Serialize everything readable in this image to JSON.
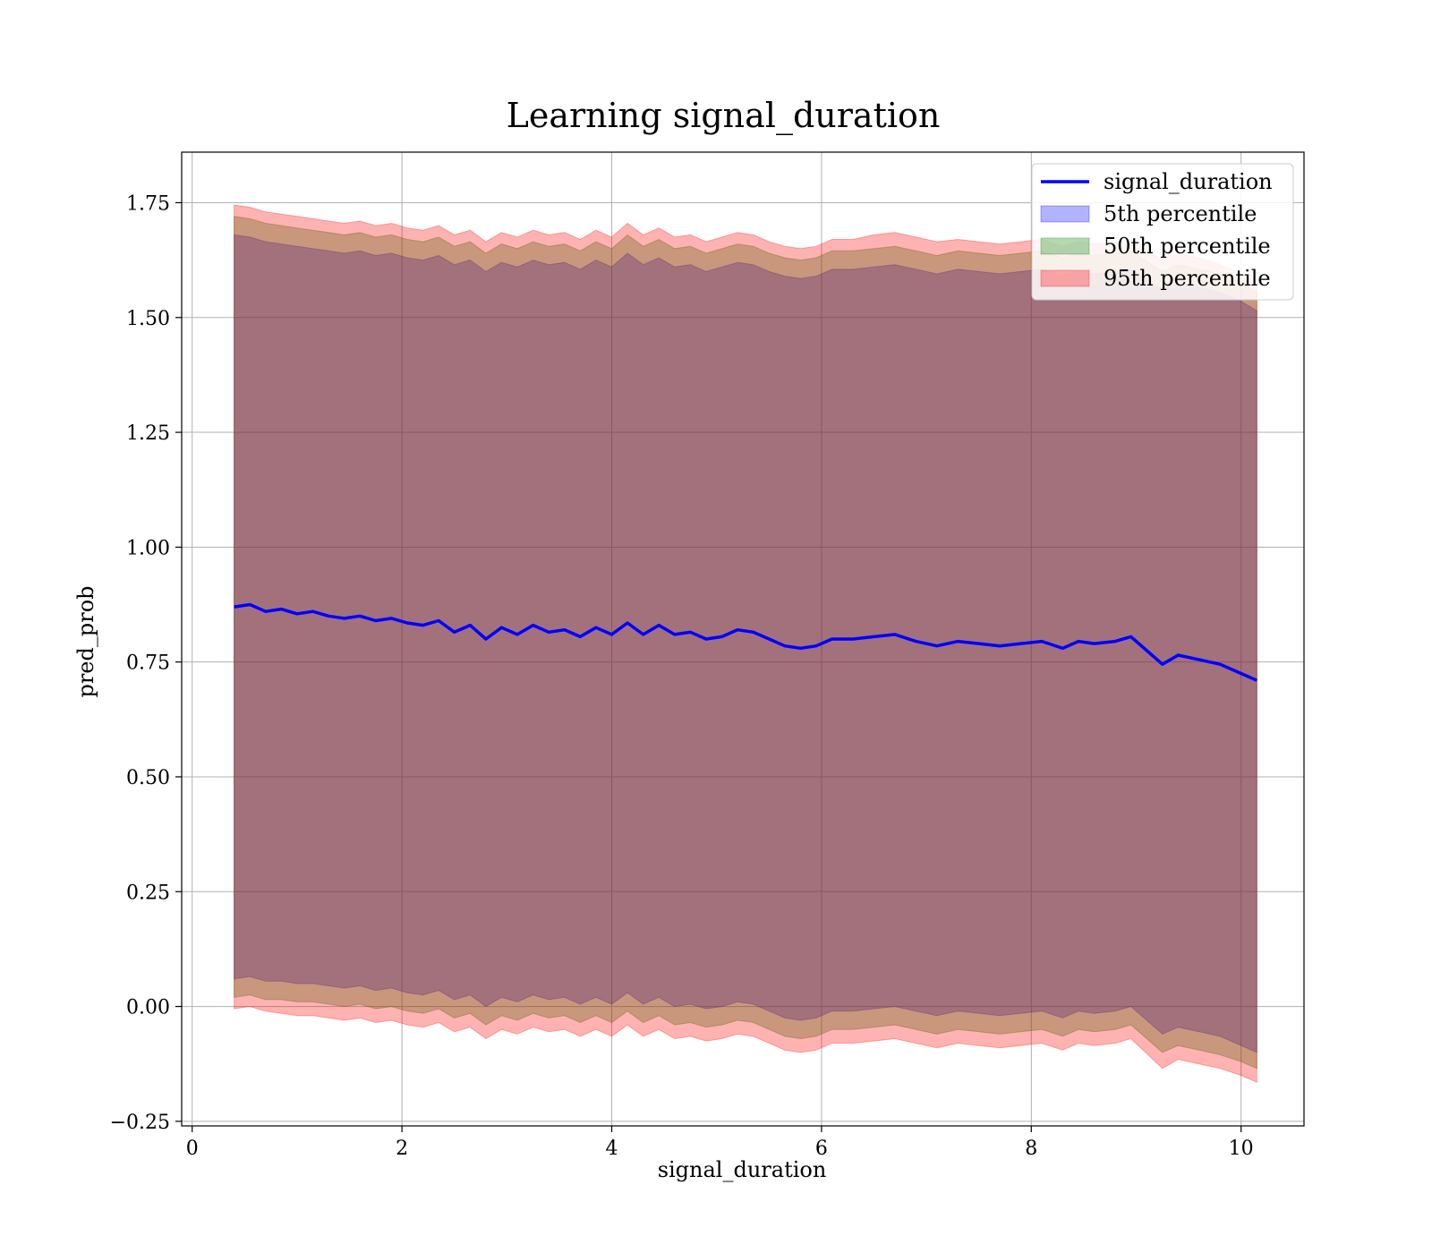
{
  "chart_data": {
    "type": "area",
    "title": "Learning signal_duration",
    "xlabel": "signal_duration",
    "ylabel": "pred_prob",
    "xlim": [
      -0.1,
      10.6
    ],
    "ylim": [
      -0.26,
      1.86
    ],
    "xticks": [
      0,
      2,
      4,
      6,
      8,
      10
    ],
    "yticks": [
      -0.25,
      0.0,
      0.25,
      0.5,
      0.75,
      1.0,
      1.25,
      1.5,
      1.75
    ],
    "grid": true,
    "legend_position": "top-right",
    "x": [
      0.4,
      0.55,
      0.7,
      0.85,
      1.0,
      1.15,
      1.3,
      1.45,
      1.6,
      1.75,
      1.9,
      2.05,
      2.2,
      2.35,
      2.5,
      2.65,
      2.8,
      2.95,
      3.1,
      3.25,
      3.4,
      3.55,
      3.7,
      3.85,
      4.0,
      4.15,
      4.3,
      4.45,
      4.6,
      4.75,
      4.9,
      5.05,
      5.2,
      5.35,
      5.5,
      5.65,
      5.8,
      5.95,
      6.1,
      6.3,
      6.5,
      6.7,
      6.9,
      7.1,
      7.3,
      7.5,
      7.7,
      7.9,
      8.1,
      8.3,
      8.45,
      8.6,
      8.8,
      8.95,
      9.25,
      9.4,
      9.6,
      9.8,
      10.0,
      10.15
    ],
    "series": [
      {
        "name": "signal_duration",
        "kind": "line",
        "color": "#0000ff",
        "values": [
          0.87,
          0.875,
          0.86,
          0.865,
          0.855,
          0.86,
          0.85,
          0.845,
          0.85,
          0.84,
          0.845,
          0.835,
          0.83,
          0.84,
          0.815,
          0.83,
          0.8,
          0.825,
          0.81,
          0.83,
          0.815,
          0.82,
          0.805,
          0.825,
          0.81,
          0.835,
          0.81,
          0.83,
          0.81,
          0.815,
          0.8,
          0.805,
          0.82,
          0.815,
          0.8,
          0.785,
          0.78,
          0.785,
          0.8,
          0.8,
          0.805,
          0.81,
          0.795,
          0.785,
          0.795,
          0.79,
          0.785,
          0.79,
          0.795,
          0.78,
          0.795,
          0.79,
          0.795,
          0.805,
          0.745,
          0.765,
          0.755,
          0.745,
          0.725,
          0.71
        ]
      },
      {
        "name": "5th percentile",
        "kind": "band",
        "color": "#0000ff",
        "upper": [
          1.68,
          1.675,
          1.665,
          1.66,
          1.655,
          1.65,
          1.645,
          1.64,
          1.645,
          1.635,
          1.64,
          1.63,
          1.625,
          1.635,
          1.615,
          1.625,
          1.6,
          1.62,
          1.61,
          1.625,
          1.615,
          1.62,
          1.605,
          1.625,
          1.61,
          1.64,
          1.615,
          1.63,
          1.61,
          1.615,
          1.6,
          1.61,
          1.62,
          1.615,
          1.6,
          1.59,
          1.585,
          1.59,
          1.605,
          1.605,
          1.61,
          1.615,
          1.605,
          1.595,
          1.605,
          1.6,
          1.595,
          1.6,
          1.605,
          1.59,
          1.6,
          1.595,
          1.6,
          1.605,
          1.56,
          1.575,
          1.565,
          1.555,
          1.535,
          1.515
        ],
        "lower": [
          0.06,
          0.065,
          0.055,
          0.055,
          0.05,
          0.05,
          0.045,
          0.04,
          0.045,
          0.035,
          0.04,
          0.03,
          0.025,
          0.035,
          0.015,
          0.025,
          0.0,
          0.02,
          0.01,
          0.025,
          0.015,
          0.02,
          0.005,
          0.02,
          0.005,
          0.03,
          0.005,
          0.02,
          0.0,
          0.005,
          -0.005,
          0.0,
          0.01,
          0.005,
          -0.01,
          -0.025,
          -0.03,
          -0.025,
          -0.01,
          -0.01,
          -0.005,
          0.0,
          -0.01,
          -0.02,
          -0.01,
          -0.015,
          -0.02,
          -0.015,
          -0.01,
          -0.025,
          -0.01,
          -0.015,
          -0.01,
          0.0,
          -0.06,
          -0.045,
          -0.055,
          -0.065,
          -0.085,
          -0.1
        ]
      },
      {
        "name": "50th percentile",
        "kind": "band",
        "color": "#008000",
        "upper": [
          1.72,
          1.715,
          1.705,
          1.7,
          1.695,
          1.69,
          1.685,
          1.68,
          1.685,
          1.675,
          1.68,
          1.67,
          1.665,
          1.675,
          1.655,
          1.665,
          1.64,
          1.66,
          1.65,
          1.665,
          1.655,
          1.66,
          1.645,
          1.665,
          1.65,
          1.68,
          1.655,
          1.67,
          1.65,
          1.655,
          1.64,
          1.65,
          1.66,
          1.655,
          1.64,
          1.63,
          1.625,
          1.63,
          1.645,
          1.645,
          1.65,
          1.655,
          1.645,
          1.635,
          1.645,
          1.64,
          1.635,
          1.64,
          1.645,
          1.63,
          1.64,
          1.635,
          1.64,
          1.645,
          1.6,
          1.615,
          1.605,
          1.595,
          1.575,
          1.555
        ],
        "lower": [
          0.02,
          0.025,
          0.015,
          0.015,
          0.01,
          0.01,
          0.005,
          0.0,
          0.005,
          -0.005,
          0.0,
          -0.01,
          -0.015,
          -0.005,
          -0.025,
          -0.015,
          -0.04,
          -0.02,
          -0.03,
          -0.015,
          -0.025,
          -0.02,
          -0.035,
          -0.02,
          -0.035,
          -0.01,
          -0.035,
          -0.02,
          -0.04,
          -0.035,
          -0.045,
          -0.04,
          -0.03,
          -0.035,
          -0.05,
          -0.065,
          -0.07,
          -0.065,
          -0.05,
          -0.05,
          -0.045,
          -0.04,
          -0.05,
          -0.06,
          -0.05,
          -0.055,
          -0.06,
          -0.055,
          -0.05,
          -0.065,
          -0.05,
          -0.055,
          -0.05,
          -0.04,
          -0.1,
          -0.085,
          -0.095,
          -0.105,
          -0.12,
          -0.135
        ]
      },
      {
        "name": "95th percentile",
        "kind": "band",
        "color": "#ff0000",
        "upper": [
          1.745,
          1.74,
          1.73,
          1.725,
          1.72,
          1.715,
          1.71,
          1.705,
          1.71,
          1.7,
          1.705,
          1.695,
          1.69,
          1.7,
          1.68,
          1.69,
          1.665,
          1.685,
          1.675,
          1.69,
          1.68,
          1.685,
          1.67,
          1.69,
          1.675,
          1.705,
          1.68,
          1.695,
          1.675,
          1.68,
          1.665,
          1.675,
          1.685,
          1.68,
          1.665,
          1.655,
          1.65,
          1.655,
          1.67,
          1.67,
          1.68,
          1.685,
          1.675,
          1.665,
          1.67,
          1.665,
          1.66,
          1.665,
          1.67,
          1.655,
          1.665,
          1.66,
          1.665,
          1.67,
          1.625,
          1.64,
          1.63,
          1.615,
          1.595,
          1.575
        ],
        "lower": [
          -0.005,
          0.0,
          -0.01,
          -0.015,
          -0.02,
          -0.02,
          -0.025,
          -0.03,
          -0.025,
          -0.035,
          -0.03,
          -0.04,
          -0.045,
          -0.035,
          -0.055,
          -0.045,
          -0.07,
          -0.05,
          -0.06,
          -0.045,
          -0.055,
          -0.05,
          -0.065,
          -0.05,
          -0.065,
          -0.04,
          -0.065,
          -0.05,
          -0.07,
          -0.065,
          -0.075,
          -0.07,
          -0.06,
          -0.065,
          -0.08,
          -0.095,
          -0.1,
          -0.095,
          -0.08,
          -0.08,
          -0.075,
          -0.07,
          -0.08,
          -0.09,
          -0.08,
          -0.085,
          -0.09,
          -0.085,
          -0.08,
          -0.095,
          -0.08,
          -0.085,
          -0.08,
          -0.07,
          -0.135,
          -0.115,
          -0.125,
          -0.135,
          -0.15,
          -0.165
        ]
      }
    ]
  }
}
